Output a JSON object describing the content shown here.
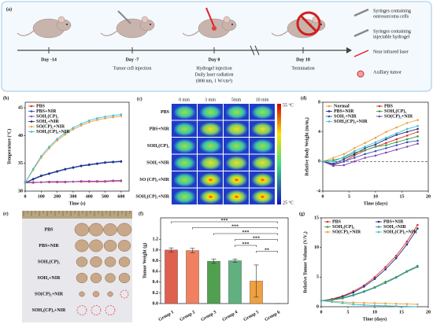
{
  "schematic": {
    "panel": "(a)",
    "steps": [
      {
        "day": "Day -14"
      },
      {
        "day": "Day -7",
        "text": [
          "Tumor cell injection"
        ]
      },
      {
        "day": "Day 0",
        "text": [
          "Hydrogel injection",
          "Daily laser radiation",
          "(808 nm, 1 W/cm²)"
        ]
      },
      {
        "day": "Day 18",
        "text": [
          "Termination"
        ]
      }
    ],
    "legend": [
      [
        "Syringes containing",
        "osteosarcoma cells"
      ],
      [
        "Syringes containing",
        "injectable hydrogel"
      ],
      [
        "Near infrared laser"
      ],
      [
        "Axillary tumor"
      ]
    ]
  },
  "thermal": {
    "panel": "(c)",
    "times": [
      "0 min",
      "3 min",
      "5min",
      "10 min"
    ],
    "groups": [
      "PBS",
      "PBS+NIR",
      "SOH₂(CP)₂",
      "SOH₂+NIR",
      "SO (CP)₂+NIR",
      "SOH₂(CP)₂+NIR"
    ],
    "scale_max": "55 °C",
    "scale_min": "25 °C"
  },
  "photo": {
    "panel": "(e)",
    "groups": [
      "PBS",
      "PBS+NIR",
      "SOH₂(CP)₂",
      "SOH₂+NIR",
      "SO(CP)₂+NIR",
      "SOH₂(CP)₂+NIR"
    ]
  },
  "chart_data": [
    {
      "panel": "(b)",
      "type": "line",
      "x_label": "Time (s)",
      "y_label": "Temperature (°C)",
      "x": [
        0,
        50,
        100,
        150,
        200,
        250,
        300,
        350,
        400,
        450,
        500,
        550,
        600
      ],
      "xlim": [
        0,
        650
      ],
      "xticks": [
        0,
        100,
        200,
        300,
        400,
        500,
        600
      ],
      "ylim": [
        30,
        46
      ],
      "yticks": [
        30,
        35,
        40,
        45
      ],
      "legend": "upper left",
      "legend_columns": 1,
      "series": [
        {
          "name": "PBS",
          "color": "#e03030",
          "values": [
            31.5,
            31.5,
            31.6,
            31.6,
            31.6,
            31.6,
            31.7,
            31.7,
            31.7,
            31.7,
            31.7,
            31.8,
            31.8
          ]
        },
        {
          "name": "PBS+NIR",
          "color": "#3050c0",
          "values": [
            31.5,
            32.2,
            32.8,
            33.2,
            33.6,
            34.0,
            34.3,
            34.6,
            34.8,
            35.0,
            35.2,
            35.3,
            35.4
          ]
        },
        {
          "name": "SOH₂(CP)₂",
          "color": "#8a4fbf",
          "values": [
            31.6,
            31.6,
            31.6,
            31.7,
            31.7,
            31.7,
            31.7,
            31.8,
            31.8,
            31.8,
            31.8,
            31.9,
            31.9
          ]
        },
        {
          "name": "SOH₂+NIR",
          "color": "#1f2f7f",
          "values": [
            31.5,
            32.1,
            32.7,
            33.1,
            33.5,
            33.9,
            34.2,
            34.5,
            34.7,
            34.9,
            35.1,
            35.2,
            35.3
          ]
        },
        {
          "name": "SO(CP)₂+NIR",
          "color": "#f0a040",
          "values": [
            31.5,
            33.8,
            36.0,
            37.7,
            39.1,
            40.2,
            41.1,
            41.8,
            42.4,
            42.8,
            43.1,
            43.3,
            43.5
          ]
        },
        {
          "name": "SOH₂(CP)₂+NIR",
          "color": "#40c0d0",
          "values": [
            31.5,
            34.0,
            36.3,
            38.0,
            39.4,
            40.5,
            41.4,
            42.1,
            42.7,
            43.1,
            43.4,
            43.6,
            43.8
          ]
        }
      ]
    },
    {
      "panel": "(d)",
      "type": "line",
      "x_label": "Time (days)",
      "y_label": "Relative Body Weight (m/m₀)",
      "x": [
        0,
        2,
        4,
        6,
        8,
        10,
        12,
        14,
        16,
        18
      ],
      "xlim": [
        0,
        20
      ],
      "xticks": [
        0,
        5,
        10,
        15,
        20
      ],
      "ylim": [
        -4,
        8
      ],
      "yticks": [
        -4,
        0,
        4,
        8
      ],
      "hline": 0,
      "legend": "upper left",
      "legend_columns": 2,
      "series": [
        {
          "name": "Normal",
          "color": "#f0a040",
          "values": [
            0,
            0.5,
            1,
            1.8,
            2.5,
            3.2,
            4,
            4.6,
            5.2,
            5.6
          ]
        },
        {
          "name": "PBS",
          "color": "#e03030",
          "values": [
            0,
            -0.5,
            0,
            0.8,
            1.5,
            2,
            2.5,
            3,
            3.5,
            4
          ]
        },
        {
          "name": "PBS+NIR",
          "color": "#1f2f7f",
          "values": [
            0,
            -0.3,
            0.3,
            1,
            1.8,
            2.3,
            3,
            3.6,
            4,
            4.4
          ]
        },
        {
          "name": "SOH₂(CP)₂",
          "color": "#3a9a3a",
          "values": [
            0,
            0.2,
            0.5,
            1.2,
            1.5,
            2,
            2.2,
            2.6,
            3,
            3.4
          ]
        },
        {
          "name": "SOH₂+NIR",
          "color": "#3050c0",
          "values": [
            0,
            -0.4,
            0,
            0.5,
            1,
            1.4,
            1.8,
            2.2,
            2.6,
            2.8
          ]
        },
        {
          "name": "SO(CP)₂+NIR",
          "color": "#8040b0",
          "values": [
            0,
            -0.6,
            -0.5,
            0,
            0.5,
            0.8,
            1.2,
            1.6,
            2,
            2.4
          ]
        },
        {
          "name": "SOH₂(CP)₂+NIR",
          "color": "#40c0d0",
          "values": [
            0,
            0,
            0.6,
            1.4,
            2,
            2.6,
            3.2,
            3.8,
            4.4,
            4.8
          ]
        }
      ]
    },
    {
      "panel": "(f)",
      "type": "bar",
      "y_label": "Tumor Weight (g)",
      "categories": [
        "Group 1",
        "Group 2",
        "Group 3",
        "Group 4",
        "Group 5",
        "Group 6"
      ],
      "values": [
        1.0,
        0.99,
        0.79,
        0.8,
        0.42,
        0
      ],
      "errors": [
        0.04,
        0.04,
        0.04,
        0.03,
        0.3,
        0
      ],
      "colors": [
        "#e06050",
        "#f08060",
        "#50a050",
        "#60b080",
        "#f0a040",
        "#40c0d0"
      ],
      "ylim": [
        0,
        1.6
      ],
      "yticks": [
        {
          "value": 0,
          "label": "0.0"
        },
        0.2,
        0.4,
        0.6,
        0.8,
        {
          "value": 1,
          "label": "1.0"
        },
        1.2
      ],
      "comparisons": [
        {
          "groups": [
            "Group 1",
            "Group 6"
          ],
          "label": "***"
        },
        {
          "groups": [
            "Group 2",
            "Group 6"
          ],
          "label": "***"
        },
        {
          "groups": [
            "Group 3",
            "Group 6"
          ],
          "label": "***"
        },
        {
          "groups": [
            "Group 4",
            "Group 6"
          ],
          "label": "***"
        },
        {
          "groups": [
            "Group 4",
            "Group 5"
          ],
          "label": "***"
        },
        {
          "groups": [
            "Group 5",
            "Group 6"
          ],
          "label": "**"
        }
      ]
    },
    {
      "panel": "(g)",
      "type": "line",
      "x_label": "Time (days)",
      "y_label": "Relative Tumor Volume (V/V₀)",
      "x": [
        0,
        2,
        4,
        6,
        8,
        10,
        12,
        14,
        16,
        18
      ],
      "xlim": [
        0,
        20
      ],
      "xticks": [
        0,
        5,
        10,
        15,
        20
      ],
      "ylim": [
        0,
        15
      ],
      "yticks": [
        0,
        5,
        10,
        15
      ],
      "legend": "upper left",
      "legend_columns": 2,
      "series": [
        {
          "name": "PBS",
          "color": "#e03030",
          "values": [
            1,
            1.3,
            1.8,
            2.6,
            3.6,
            5,
            6.7,
            8.6,
            11,
            13.8
          ]
        },
        {
          "name": "PBS+NIR",
          "color": "#1f2f7f",
          "values": [
            1,
            1.2,
            1.7,
            2.4,
            3.4,
            4.7,
            6.3,
            8.2,
            10.5,
            13.2
          ]
        },
        {
          "name": "SOH₂(CP)₂",
          "color": "#3a9a3a",
          "values": [
            1,
            1.2,
            1.5,
            2,
            2.6,
            3.3,
            4.2,
            5,
            6,
            6.9
          ]
        },
        {
          "name": "SOH₂+NIR",
          "color": "#3a8fa0",
          "values": [
            1,
            1.1,
            1.4,
            1.9,
            2.5,
            3.2,
            4,
            4.9,
            5.9,
            6.7
          ]
        },
        {
          "name": "SO(CP)₂+NIR",
          "color": "#f0a040",
          "values": [
            1,
            0.9,
            0.8,
            0.7,
            0.65,
            0.6,
            0.55,
            0.5,
            0.45,
            0.4
          ]
        },
        {
          "name": "SOH₂(CP)₂+NIR",
          "color": "#40c0d0",
          "values": [
            1,
            0.8,
            0.6,
            0.4,
            0.3,
            0.2,
            0.15,
            0.1,
            0.05,
            0
          ]
        }
      ]
    }
  ]
}
